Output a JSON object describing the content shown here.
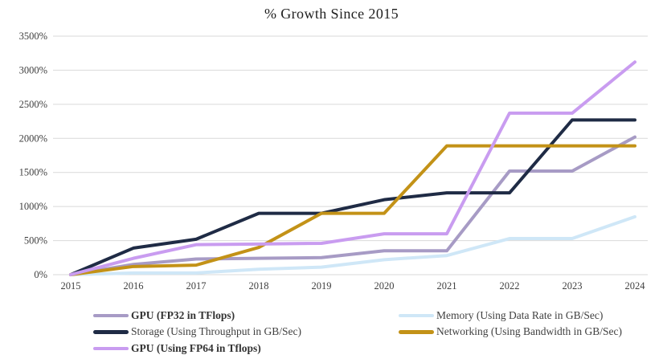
{
  "title": "% Growth Since 2015",
  "chart_data": {
    "type": "line",
    "title": "% Growth Since 2015",
    "x": [
      2015,
      2016,
      2017,
      2018,
      2019,
      2020,
      2021,
      2022,
      2023,
      2024
    ],
    "series": [
      {
        "name": "GPU (FP32 in TFlops)",
        "color": "#A79BC5",
        "bold": true,
        "values": [
          0,
          150,
          230,
          240,
          250,
          350,
          350,
          1520,
          1520,
          2020
        ]
      },
      {
        "name": "Memory (Using Data Rate in GB/Sec)",
        "color": "#CFE7F7",
        "bold": false,
        "values": [
          0,
          25,
          25,
          80,
          110,
          220,
          280,
          530,
          530,
          850
        ]
      },
      {
        "name": "Storage (Using Throughput in GB/Sec)",
        "color": "#1F2B45",
        "bold": false,
        "values": [
          0,
          390,
          520,
          900,
          900,
          1100,
          1200,
          1200,
          2270,
          2270
        ]
      },
      {
        "name": "Networking (Using Bandwidth in GB/Sec)",
        "color": "#C39217",
        "bold": false,
        "values": [
          0,
          120,
          140,
          400,
          900,
          900,
          1890,
          1890,
          1890,
          1890
        ]
      },
      {
        "name": "GPU (Using FP64 in Tflops)",
        "color": "#C99CF0",
        "bold": true,
        "values": [
          0,
          240,
          440,
          450,
          460,
          600,
          600,
          2370,
          2370,
          3120
        ]
      }
    ],
    "ylim": [
      0,
      3500
    ],
    "ytick_step": 500,
    "ytick_suffix": "%",
    "grid": true,
    "gridline_color": "#D9D9D9",
    "axis_label_color": "#404040",
    "legend_position": "bottom"
  }
}
